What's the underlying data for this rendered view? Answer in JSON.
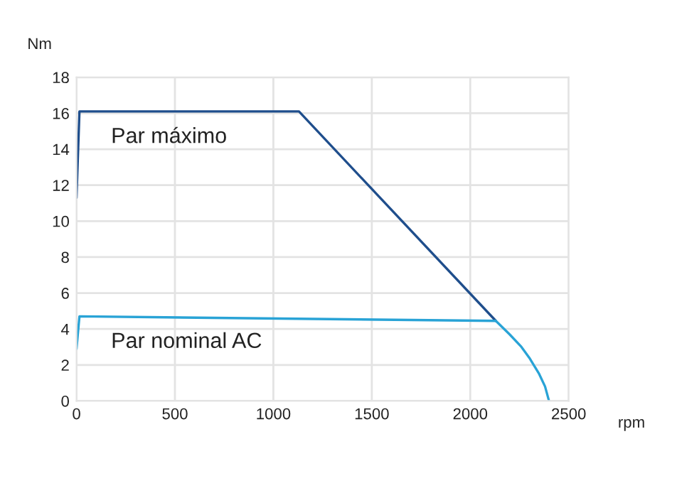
{
  "chart_data": {
    "type": "line",
    "ylabel": "Nm",
    "xlabel": "rpm",
    "series": [
      {
        "name": "Par máximo",
        "color": "#1f4e8c",
        "x": [
          0,
          15,
          1130,
          2130
        ],
        "values": [
          11.3,
          16.1,
          16.1,
          4.45
        ]
      },
      {
        "name": "Par nominal AC",
        "color": "#29a3d6",
        "x": [
          0,
          15,
          2130,
          2200,
          2260,
          2300,
          2350,
          2380,
          2400
        ],
        "values": [
          2.9,
          4.7,
          4.45,
          3.7,
          3.0,
          2.4,
          1.5,
          0.8,
          0
        ]
      }
    ],
    "xlim": [
      0,
      2500
    ],
    "xticks": [
      0,
      500,
      1000,
      1500,
      2000,
      2500
    ],
    "ylim": [
      0,
      18
    ],
    "yticks": [
      0,
      2,
      4,
      6,
      8,
      10,
      12,
      14,
      16,
      18
    ],
    "grid": true,
    "legend": false,
    "marker": "none",
    "line_style": "solid"
  }
}
